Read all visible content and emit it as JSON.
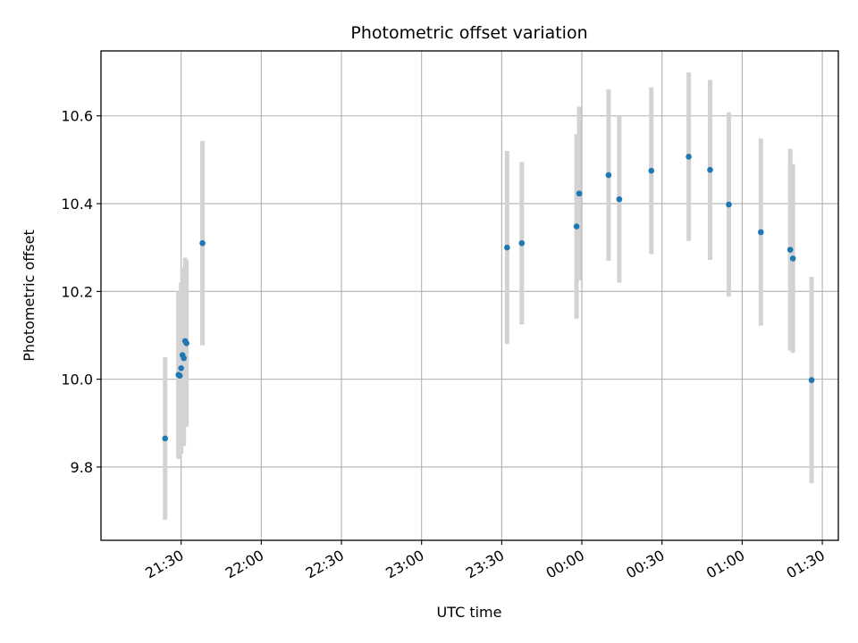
{
  "chart_data": {
    "type": "scatter",
    "title": "Photometric offset variation",
    "xlabel": "UTC time",
    "ylabel": "Photometric offset",
    "grid": true,
    "ylim": [
      9.633,
      10.748
    ],
    "xlim": [
      "21:00",
      "01:36"
    ],
    "x_ticks": [
      "21:30",
      "22:00",
      "22:30",
      "23:00",
      "23:30",
      "00:00",
      "00:30",
      "01:00",
      "01:30"
    ],
    "y_ticks": [
      "9.8",
      "10.0",
      "10.2",
      "10.4",
      "10.6"
    ],
    "colors": {
      "points": "#1f77b4",
      "error_bars": "#d3d3d3",
      "grid": "#b0b0b0"
    },
    "series": [
      {
        "x": [
          "21:24",
          "21:29",
          "21:29:30",
          "21:30",
          "21:30:30",
          "21:31",
          "21:31:30",
          "21:32",
          "21:38",
          "23:32",
          "23:37:30",
          "23:58",
          "23:59",
          "00:10",
          "00:14",
          "00:26",
          "00:40",
          "00:48",
          "00:55",
          "01:07",
          "01:18",
          "01:19",
          "01:26"
        ],
        "y": [
          9.865,
          10.01,
          10.008,
          10.025,
          10.055,
          10.048,
          10.087,
          10.082,
          10.31,
          10.3,
          10.31,
          10.348,
          10.423,
          10.465,
          10.41,
          10.475,
          10.507,
          10.477,
          10.398,
          10.335,
          10.295,
          10.275,
          9.998
        ],
        "yerr": [
          0.185,
          0.19,
          0.19,
          0.195,
          0.2,
          0.2,
          0.19,
          0.19,
          0.233,
          0.22,
          0.185,
          0.21,
          0.198,
          0.195,
          0.19,
          0.19,
          0.192,
          0.205,
          0.21,
          0.213,
          0.23,
          0.215,
          0.235
        ]
      }
    ]
  }
}
